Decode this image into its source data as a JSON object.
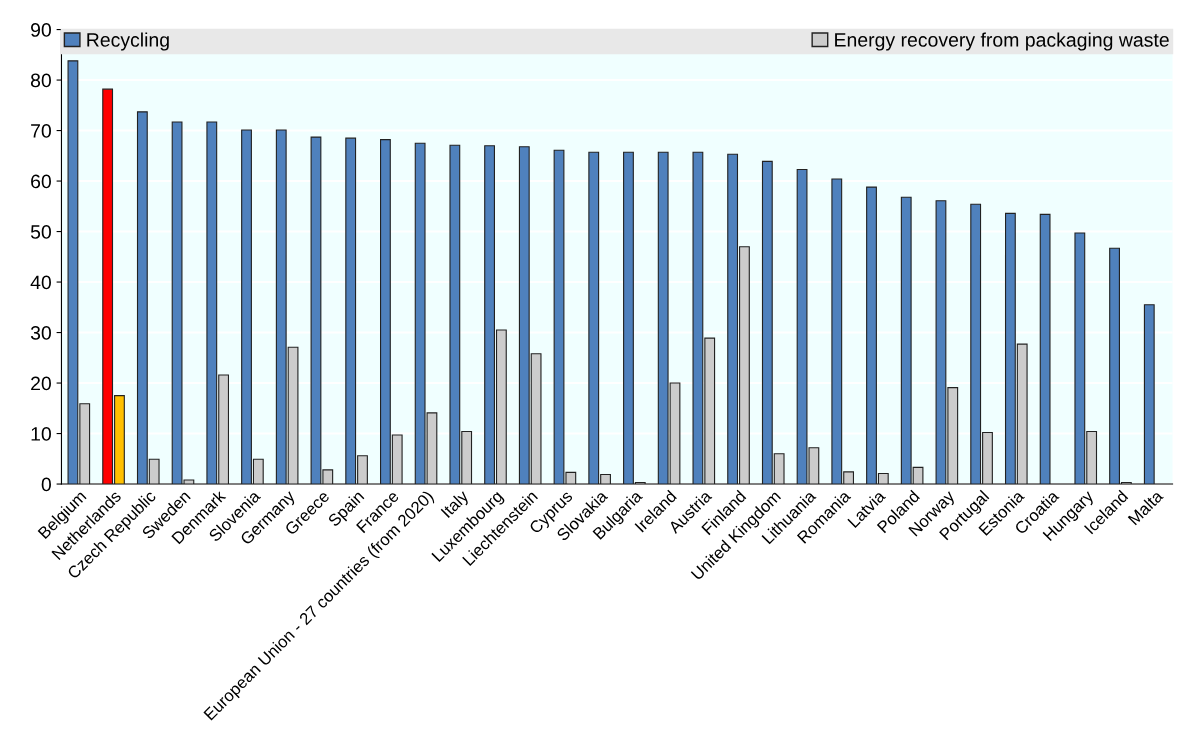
{
  "chart_data": {
    "type": "bar",
    "categories": [
      "Belgium",
      "Netherlands",
      "Czech Republic",
      "Sweden",
      "Denmark",
      "Slovenia",
      "Germany",
      "Greece",
      "Spain",
      "France",
      "European Union - 27 countries (from 2020)",
      "Italy",
      "Luxembourg",
      "Liechtenstein",
      "Cyprus",
      "Slovakia",
      "Bulgaria",
      "Ireland",
      "Austria",
      "Finland",
      "United Kingdom",
      "Lithuania",
      "Romania",
      "Latvia",
      "Poland",
      "Norway",
      "Portugal",
      "Estonia",
      "Croatia",
      "Hungary",
      "Iceland",
      "Malta"
    ],
    "series": [
      {
        "name": "Recycling",
        "color": "#4f81bd",
        "colors": [
          "#4f81bd",
          "#ff0000",
          "#4f81bd",
          "#4f81bd",
          "#4f81bd",
          "#4f81bd",
          "#4f81bd",
          "#4f81bd",
          "#4f81bd",
          "#4f81bd",
          "#4f81bd",
          "#4f81bd",
          "#4f81bd",
          "#4f81bd",
          "#4f81bd",
          "#4f81bd",
          "#4f81bd",
          "#4f81bd",
          "#4f81bd",
          "#4f81bd",
          "#4f81bd",
          "#4f81bd",
          "#4f81bd",
          "#4f81bd",
          "#4f81bd",
          "#4f81bd",
          "#4f81bd",
          "#4f81bd",
          "#4f81bd",
          "#4f81bd",
          "#4f81bd",
          "#4f81bd"
        ],
        "values": [
          83.8,
          78.2,
          73.7,
          71.7,
          71.7,
          70.1,
          70.1,
          68.7,
          68.5,
          68.2,
          67.5,
          67.1,
          67.0,
          66.8,
          66.1,
          65.7,
          65.7,
          65.7,
          65.7,
          65.3,
          63.9,
          62.3,
          60.4,
          58.8,
          56.8,
          56.1,
          55.4,
          53.6,
          53.4,
          49.7,
          46.7,
          35.5
        ]
      },
      {
        "name": "Energy recovery from packaging waste",
        "color": "#cccccc",
        "colors": [
          "#cccccc",
          "#ffc000",
          "#cccccc",
          "#cccccc",
          "#cccccc",
          "#cccccc",
          "#cccccc",
          "#cccccc",
          "#cccccc",
          "#cccccc",
          "#cccccc",
          "#cccccc",
          "#cccccc",
          "#cccccc",
          "#cccccc",
          "#cccccc",
          "#cccccc",
          "#cccccc",
          "#cccccc",
          "#cccccc",
          "#cccccc",
          "#cccccc",
          "#cccccc",
          "#cccccc",
          "#cccccc",
          "#cccccc",
          "#cccccc",
          "#cccccc",
          "#cccccc",
          "#cccccc",
          "#cccccc",
          "#cccccc"
        ],
        "values": [
          15.9,
          17.5,
          4.9,
          0.8,
          21.6,
          4.9,
          27.1,
          2.8,
          5.6,
          9.7,
          14.1,
          10.4,
          30.5,
          25.8,
          2.3,
          1.9,
          0.3,
          20.0,
          28.9,
          47.0,
          6.0,
          7.2,
          2.4,
          2.1,
          3.3,
          19.1,
          10.2,
          27.7,
          null,
          10.4,
          0.3,
          null
        ]
      }
    ],
    "ylim": [
      0,
      90
    ],
    "yticks": [
      0,
      10,
      20,
      30,
      40,
      50,
      60,
      70,
      80,
      90
    ],
    "grid": "y",
    "legend": "top"
  }
}
